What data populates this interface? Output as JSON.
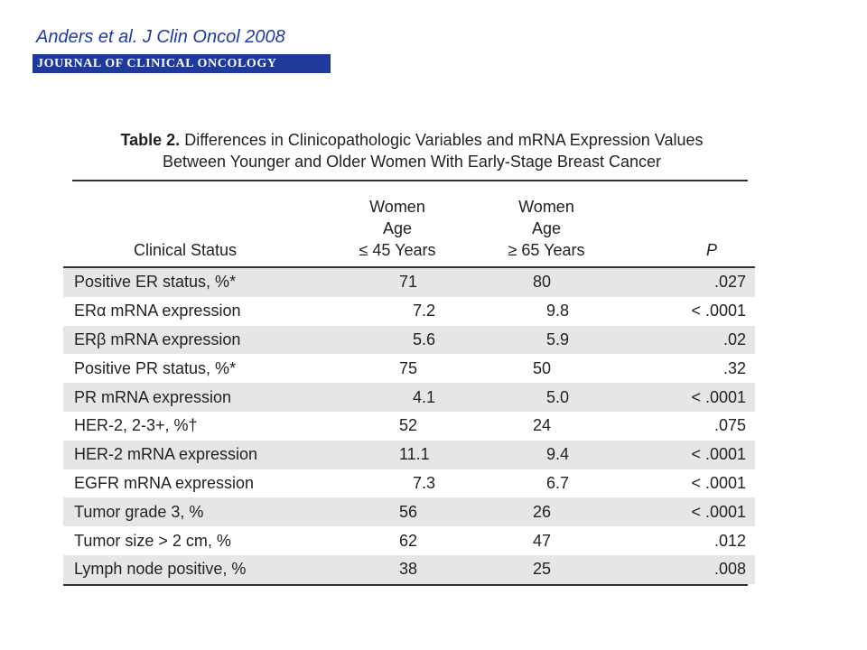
{
  "citation": "Anders et al. J Clin Oncol 2008",
  "journal_banner": "JOURNAL OF CLINICAL ONCOLOGY",
  "table": {
    "caption_label": "Table 2.",
    "caption_line1": "Differences in Clinicopathologic Variables and mRNA Expression Values",
    "caption_line2": "Between Younger and Older Women With Early-Stage Breast Cancer",
    "headers": {
      "status": "Clinical Status",
      "young_line1": "Women",
      "young_line2": "Age",
      "young_line3": "≤ 45 Years",
      "old_line1": "Women",
      "old_line2": "Age",
      "old_line3": "≥ 65 Years",
      "p": "P"
    },
    "rows": [
      {
        "label": "Positive ER status, %*",
        "young": "71",
        "old": "80",
        "p": ".027"
      },
      {
        "label": "ERα mRNA expression",
        "young": "   7.2",
        "old": "   9.8",
        "p": "< .0001"
      },
      {
        "label": "ERβ mRNA expression",
        "young": "   5.6",
        "old": "   5.9",
        "p": ".02"
      },
      {
        "label": "Positive PR status, %*",
        "young": "75",
        "old": "50",
        "p": ".32"
      },
      {
        "label": "PR mRNA expression",
        "young": "   4.1",
        "old": "   5.0",
        "p": "< .0001"
      },
      {
        "label": "HER-2, 2-3+, %†",
        "young": "52",
        "old": "24",
        "p": ".075"
      },
      {
        "label": "HER-2 mRNA expression",
        "young": "11.1",
        "old": "   9.4",
        "p": "< .0001"
      },
      {
        "label": "EGFR mRNA expression",
        "young": "   7.3",
        "old": "   6.7",
        "p": "< .0001"
      },
      {
        "label": "Tumor grade 3, %",
        "young": "56",
        "old": "26",
        "p": "< .0001"
      },
      {
        "label": "Tumor size > 2 cm, %",
        "young": "62",
        "old": "47",
        "p": ".012"
      },
      {
        "label": "Lymph node positive, %",
        "young": "38",
        "old": "25",
        "p": ".008"
      }
    ]
  }
}
